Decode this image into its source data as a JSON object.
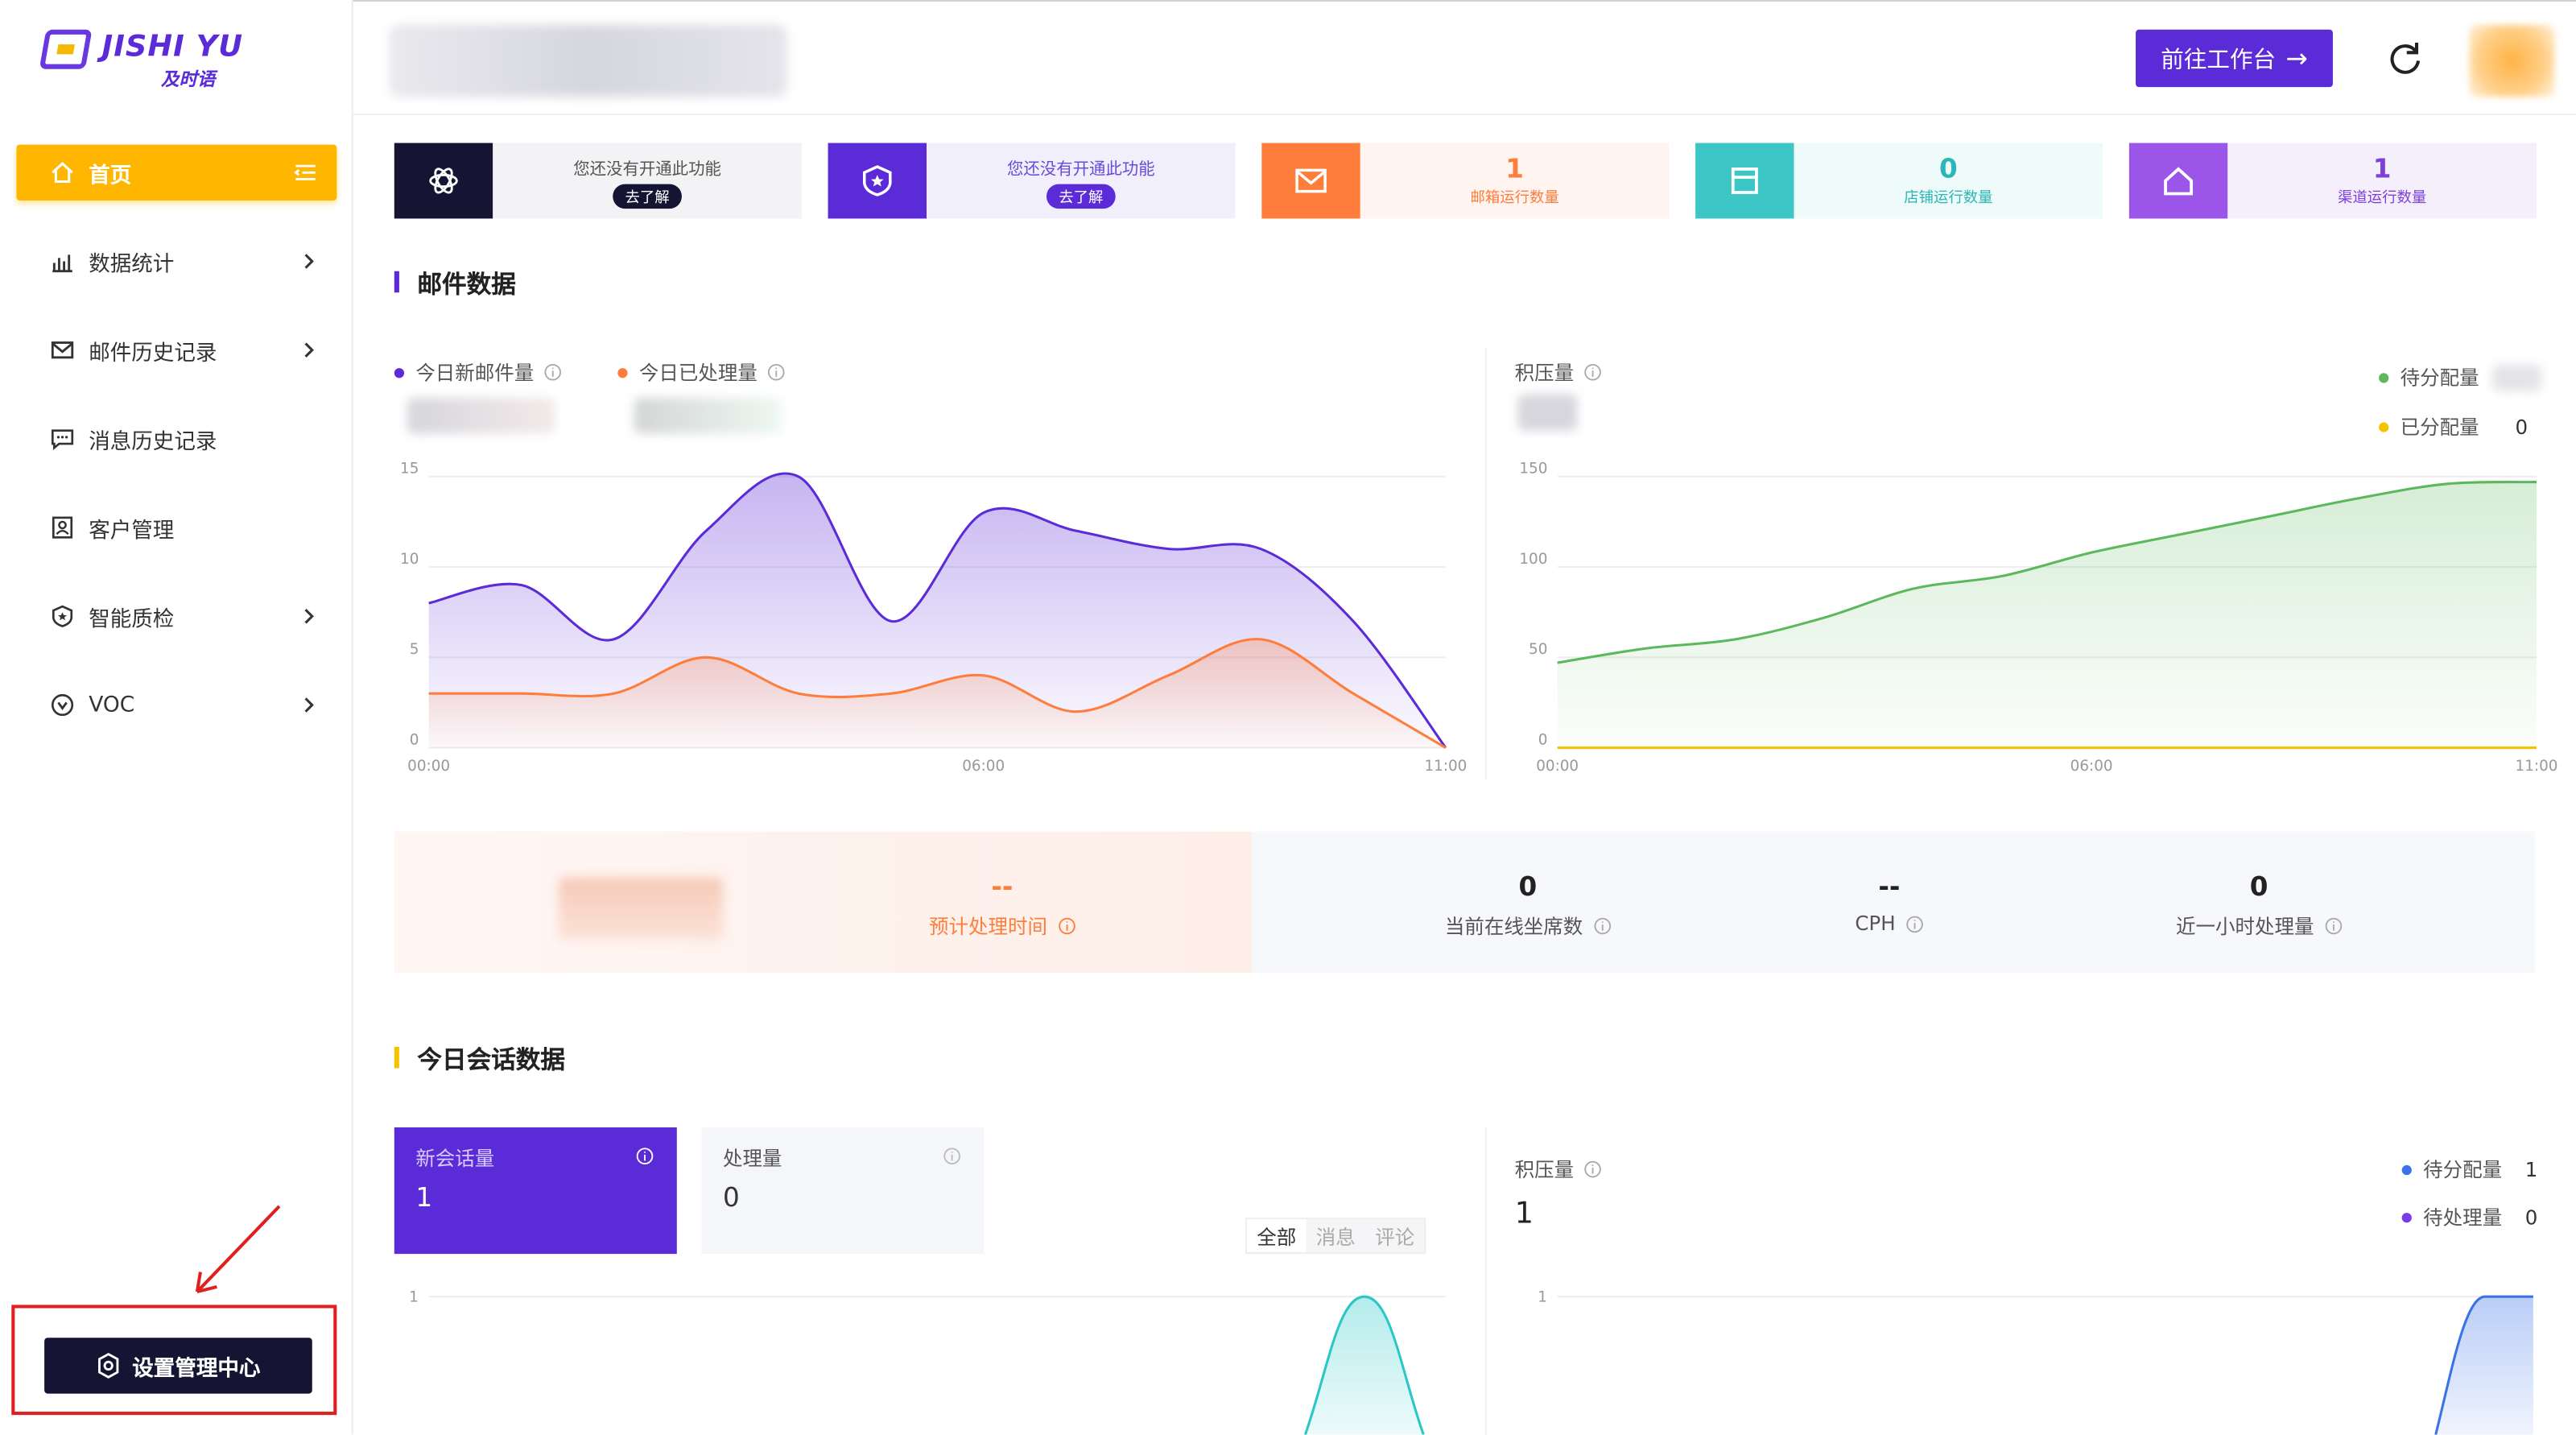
{
  "app": {
    "logo_text": "JISHI YU",
    "logo_sub": "及时语"
  },
  "sidebar": {
    "items": [
      {
        "label": "首页",
        "icon": "home-icon",
        "active": true
      },
      {
        "label": "数据统计",
        "icon": "chart-icon",
        "has_submenu": true
      },
      {
        "label": "邮件历史记录",
        "icon": "mail-icon",
        "has_submenu": true
      },
      {
        "label": "消息历史记录",
        "icon": "message-icon",
        "has_submenu": false
      },
      {
        "label": "客户管理",
        "icon": "contact-icon",
        "has_submenu": false
      },
      {
        "label": "智能质检",
        "icon": "shield-star-icon",
        "has_submenu": true
      },
      {
        "label": "VOC",
        "icon": "voc-icon",
        "has_submenu": true
      }
    ],
    "settings_label": "设置管理中心"
  },
  "header": {
    "goto_label": "前往工作台"
  },
  "cards": [
    {
      "type": "promo",
      "message": "您还没有开通此功能",
      "action": "去了解",
      "icon": "openai-icon",
      "color": "#151433"
    },
    {
      "type": "promo",
      "message": "您还没有开通此功能",
      "action": "去了解",
      "icon": "shield-star-icon",
      "color": "#5b2bd8"
    },
    {
      "type": "stat",
      "value": "1",
      "label": "邮箱运行数量",
      "icon": "mail-icon",
      "color": "#ff7d3b"
    },
    {
      "type": "stat",
      "value": "0",
      "label": "店铺运行数量",
      "icon": "store-icon",
      "color": "#3cc6c6"
    },
    {
      "type": "stat",
      "value": "1",
      "label": "渠道运行数量",
      "icon": "channel-icon",
      "color": "#9b55e8"
    }
  ],
  "mail_section": {
    "title": "邮件数据",
    "legend_new": "今日新邮件量",
    "legend_done": "今日已处理量",
    "backlog_label": "积压量",
    "legend_pending": "待分配量",
    "legend_assigned": "已分配量",
    "assigned_value": "0"
  },
  "metrics": {
    "est_time": {
      "value": "--",
      "label": "预计处理时间"
    },
    "online": {
      "value": "0",
      "label": "当前在线坐席数"
    },
    "cph": {
      "value": "--",
      "label": "CPH"
    },
    "last_hour": {
      "value": "0",
      "label": "近一小时处理量"
    }
  },
  "conv_section": {
    "title": "今日会话数据",
    "new_label": "新会话量",
    "new_value": "1",
    "done_label": "处理量",
    "done_value": "0",
    "tabs": [
      "全部",
      "消息",
      "评论"
    ],
    "backlog_label": "积压量",
    "backlog_value": "1",
    "pending_label": "待分配量",
    "pending_value": "1",
    "processing_label": "待处理量",
    "processing_value": "0"
  },
  "chart_data": [
    {
      "type": "area",
      "series": [
        {
          "name": "今日新邮件量",
          "color": "#5b2bd8",
          "points": [
            [
              0,
              8
            ],
            [
              1,
              9
            ],
            [
              2,
              6
            ],
            [
              3,
              12
            ],
            [
              4,
              15
            ],
            [
              5,
              7
            ],
            [
              6,
              13
            ],
            [
              7,
              12
            ],
            [
              8,
              11
            ],
            [
              9,
              11
            ],
            [
              10,
              7
            ],
            [
              11,
              0
            ]
          ]
        },
        {
          "name": "今日已处理量",
          "color": "#ff7d3b",
          "points": [
            [
              0,
              3
            ],
            [
              1,
              3
            ],
            [
              2,
              3
            ],
            [
              3,
              5
            ],
            [
              4,
              3
            ],
            [
              5,
              3
            ],
            [
              6,
              4
            ],
            [
              7,
              2
            ],
            [
              8,
              4
            ],
            [
              9,
              6
            ],
            [
              10,
              3
            ],
            [
              11,
              0
            ]
          ]
        }
      ],
      "x_ticks": [
        "00:00",
        "06:00",
        "11:00"
      ],
      "y_ticks": [
        0,
        5,
        10,
        15
      ],
      "xlim": [
        0,
        11
      ],
      "ylim": [
        0,
        15
      ]
    },
    {
      "type": "area",
      "series": [
        {
          "name": "待分配量",
          "color": "#5cb85c",
          "points": [
            [
              0,
              47
            ],
            [
              1,
              55
            ],
            [
              2,
              60
            ],
            [
              3,
              72
            ],
            [
              4,
              88
            ],
            [
              5,
              95
            ],
            [
              6,
              108
            ],
            [
              7,
              118
            ],
            [
              8,
              128
            ],
            [
              9,
              138
            ],
            [
              10,
              146
            ],
            [
              11,
              147
            ]
          ]
        },
        {
          "name": "已分配量",
          "color": "#f5c400",
          "points": [
            [
              0,
              0
            ],
            [
              11,
              0
            ]
          ]
        }
      ],
      "x_ticks": [
        "00:00",
        "06:00",
        "11:00"
      ],
      "y_ticks": [
        0,
        50,
        100,
        150
      ],
      "xlim": [
        0,
        11
      ],
      "ylim": [
        0,
        150
      ]
    },
    {
      "type": "area",
      "series": [
        {
          "name": "新会话量",
          "color": "#2ac7c7",
          "peak_at": 0.92,
          "value": 1
        }
      ],
      "y_ticks": [
        1
      ]
    },
    {
      "type": "area",
      "series": [
        {
          "name": "待分配量",
          "color": "#3a72e8",
          "from": 0.9,
          "value": 1
        }
      ],
      "y_ticks": [
        1
      ]
    }
  ]
}
